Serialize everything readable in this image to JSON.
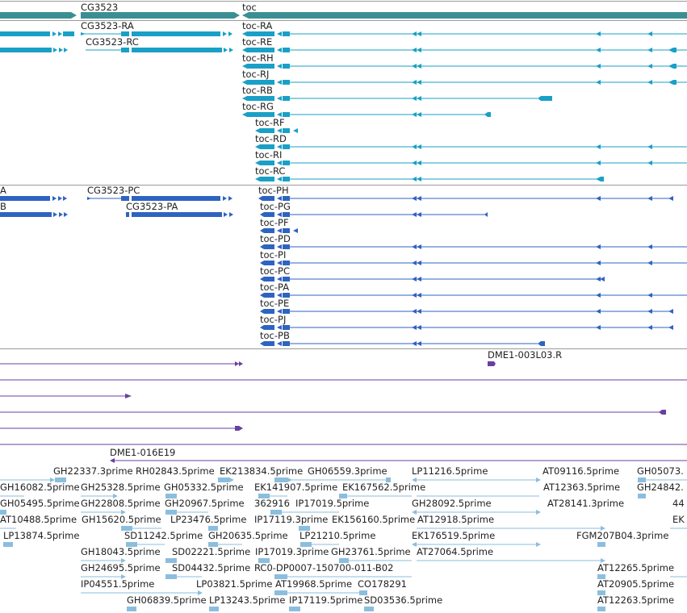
{
  "colors": {
    "gene": "#3a8f93",
    "transcript": "#1aa0c6",
    "protein": "#2f63c2",
    "clone": "#6a3fa0",
    "est": "#8bbede",
    "divider": "#9a9a9a",
    "label": "#222222"
  },
  "gene_track": {
    "labels": [
      {
        "id": "g-cg3523",
        "text": "CG3523"
      },
      {
        "id": "g-toc",
        "text": "toc"
      }
    ]
  },
  "transcript_track": {
    "labels": [
      {
        "id": "t-cg-ra",
        "text": "CG3523-RA"
      },
      {
        "id": "t-cg-rc",
        "text": "CG3523-RC"
      },
      {
        "id": "t-toc-ra",
        "text": "toc-RA"
      },
      {
        "id": "t-toc-re",
        "text": "toc-RE"
      },
      {
        "id": "t-toc-rh",
        "text": "toc-RH"
      },
      {
        "id": "t-toc-rj",
        "text": "toc-RJ"
      },
      {
        "id": "t-toc-rb",
        "text": "toc-RB"
      },
      {
        "id": "t-toc-rg",
        "text": "toc-RG"
      },
      {
        "id": "t-toc-rf",
        "text": "toc-RF"
      },
      {
        "id": "t-toc-rd",
        "text": "toc-RD"
      },
      {
        "id": "t-toc-ri",
        "text": "toc-RI"
      },
      {
        "id": "t-toc-rc",
        "text": "toc-RC"
      }
    ]
  },
  "protein_track": {
    "labels": [
      {
        "id": "p-a",
        "text": "A"
      },
      {
        "id": "p-b",
        "text": "B"
      },
      {
        "id": "p-cg-pc",
        "text": "CG3523-PC"
      },
      {
        "id": "p-cg-pa",
        "text": "CG3523-PA"
      },
      {
        "id": "p-toc-ph",
        "text": "toc-PH"
      },
      {
        "id": "p-toc-pg",
        "text": "toc-PG"
      },
      {
        "id": "p-toc-pf",
        "text": "toc-PF"
      },
      {
        "id": "p-toc-pd",
        "text": "toc-PD"
      },
      {
        "id": "p-toc-pi",
        "text": "toc-PI"
      },
      {
        "id": "p-toc-pc",
        "text": "toc-PC"
      },
      {
        "id": "p-toc-pa",
        "text": "toc-PA"
      },
      {
        "id": "p-toc-pe",
        "text": "toc-PE"
      },
      {
        "id": "p-toc-pj",
        "text": "toc-PJ"
      },
      {
        "id": "p-toc-pb",
        "text": "toc-PB"
      }
    ]
  },
  "clone_track": {
    "labels": [
      {
        "id": "c-1",
        "text": "DME1-003L03.R"
      },
      {
        "id": "c-2",
        "text": "DME1-016E19"
      }
    ]
  },
  "est_track": {
    "labels": [
      {
        "id": "e1",
        "text": "GH22337.3prime"
      },
      {
        "id": "e2",
        "text": "RH02843.5prime"
      },
      {
        "id": "e3",
        "text": "EK213834.5prime"
      },
      {
        "id": "e4",
        "text": "GH06559.3prime"
      },
      {
        "id": "e5",
        "text": "LP11216.5prime"
      },
      {
        "id": "e6",
        "text": "AT09116.5prime"
      },
      {
        "id": "e7",
        "text": "GH05073."
      },
      {
        "id": "e8",
        "text": "GH16082.5prime"
      },
      {
        "id": "e9",
        "text": "GH25328.5prime"
      },
      {
        "id": "e10",
        "text": "GH05332.5prime"
      },
      {
        "id": "e11",
        "text": "EK141907.5prime"
      },
      {
        "id": "e12",
        "text": "EK167562.5prime"
      },
      {
        "id": "e13",
        "text": "AT12363.5prime"
      },
      {
        "id": "e14",
        "text": "GH24842."
      },
      {
        "id": "e15",
        "text": "GH05495.5prime"
      },
      {
        "id": "e16",
        "text": "GH22808.5prime"
      },
      {
        "id": "e17",
        "text": "GH20967.5prime"
      },
      {
        "id": "e18",
        "text": "362916"
      },
      {
        "id": "e19",
        "text": "IP17019.5prime"
      },
      {
        "id": "e20",
        "text": "GH28092.5prime"
      },
      {
        "id": "e21",
        "text": "AT28141.3prime"
      },
      {
        "id": "e22",
        "text": "44"
      },
      {
        "id": "e23",
        "text": "AT10488.5prime"
      },
      {
        "id": "e24",
        "text": "GH15620.5prime"
      },
      {
        "id": "e25",
        "text": "LP23476.5prime"
      },
      {
        "id": "e26",
        "text": "IP17119.3prime"
      },
      {
        "id": "e27",
        "text": "EK156160.5prime"
      },
      {
        "id": "e28",
        "text": "AT12918.5prime"
      },
      {
        "id": "e29",
        "text": "EK"
      },
      {
        "id": "e30",
        "text": "LP13874.5prime"
      },
      {
        "id": "e31",
        "text": "SD11242.5prime"
      },
      {
        "id": "e32",
        "text": "GH20635.5prime"
      },
      {
        "id": "e33",
        "text": "LP21210.5prime"
      },
      {
        "id": "e34",
        "text": "EK176519.5prime"
      },
      {
        "id": "e35",
        "text": "FGM207B04.3prime"
      },
      {
        "id": "e36",
        "text": "GH18043.5prime"
      },
      {
        "id": "e37",
        "text": "SD02221.5prime"
      },
      {
        "id": "e38",
        "text": "IP17019.3prime"
      },
      {
        "id": "e39",
        "text": "GH23761.5prime"
      },
      {
        "id": "e40",
        "text": "AT27064.5prime"
      },
      {
        "id": "e41",
        "text": "GH24695.5prime"
      },
      {
        "id": "e42",
        "text": "SD04432.5prime"
      },
      {
        "id": "e43",
        "text": "RC0-DP0007-150700-011-B02"
      },
      {
        "id": "e44",
        "text": "AT12265.5prime"
      },
      {
        "id": "e45",
        "text": "IP04551.5prime"
      },
      {
        "id": "e46",
        "text": "LP03821.5prime"
      },
      {
        "id": "e47",
        "text": "AT19968.5prime"
      },
      {
        "id": "e48",
        "text": "CO178291"
      },
      {
        "id": "e49",
        "text": "AT20905.5prime"
      },
      {
        "id": "e50",
        "text": "GH06839.5prime"
      },
      {
        "id": "e51",
        "text": "LP13243.5prime"
      },
      {
        "id": "e52",
        "text": "IP17119.5prime"
      },
      {
        "id": "e53",
        "text": "SD03536.5prime"
      },
      {
        "id": "e54",
        "text": "AT12263.5prime"
      }
    ]
  }
}
